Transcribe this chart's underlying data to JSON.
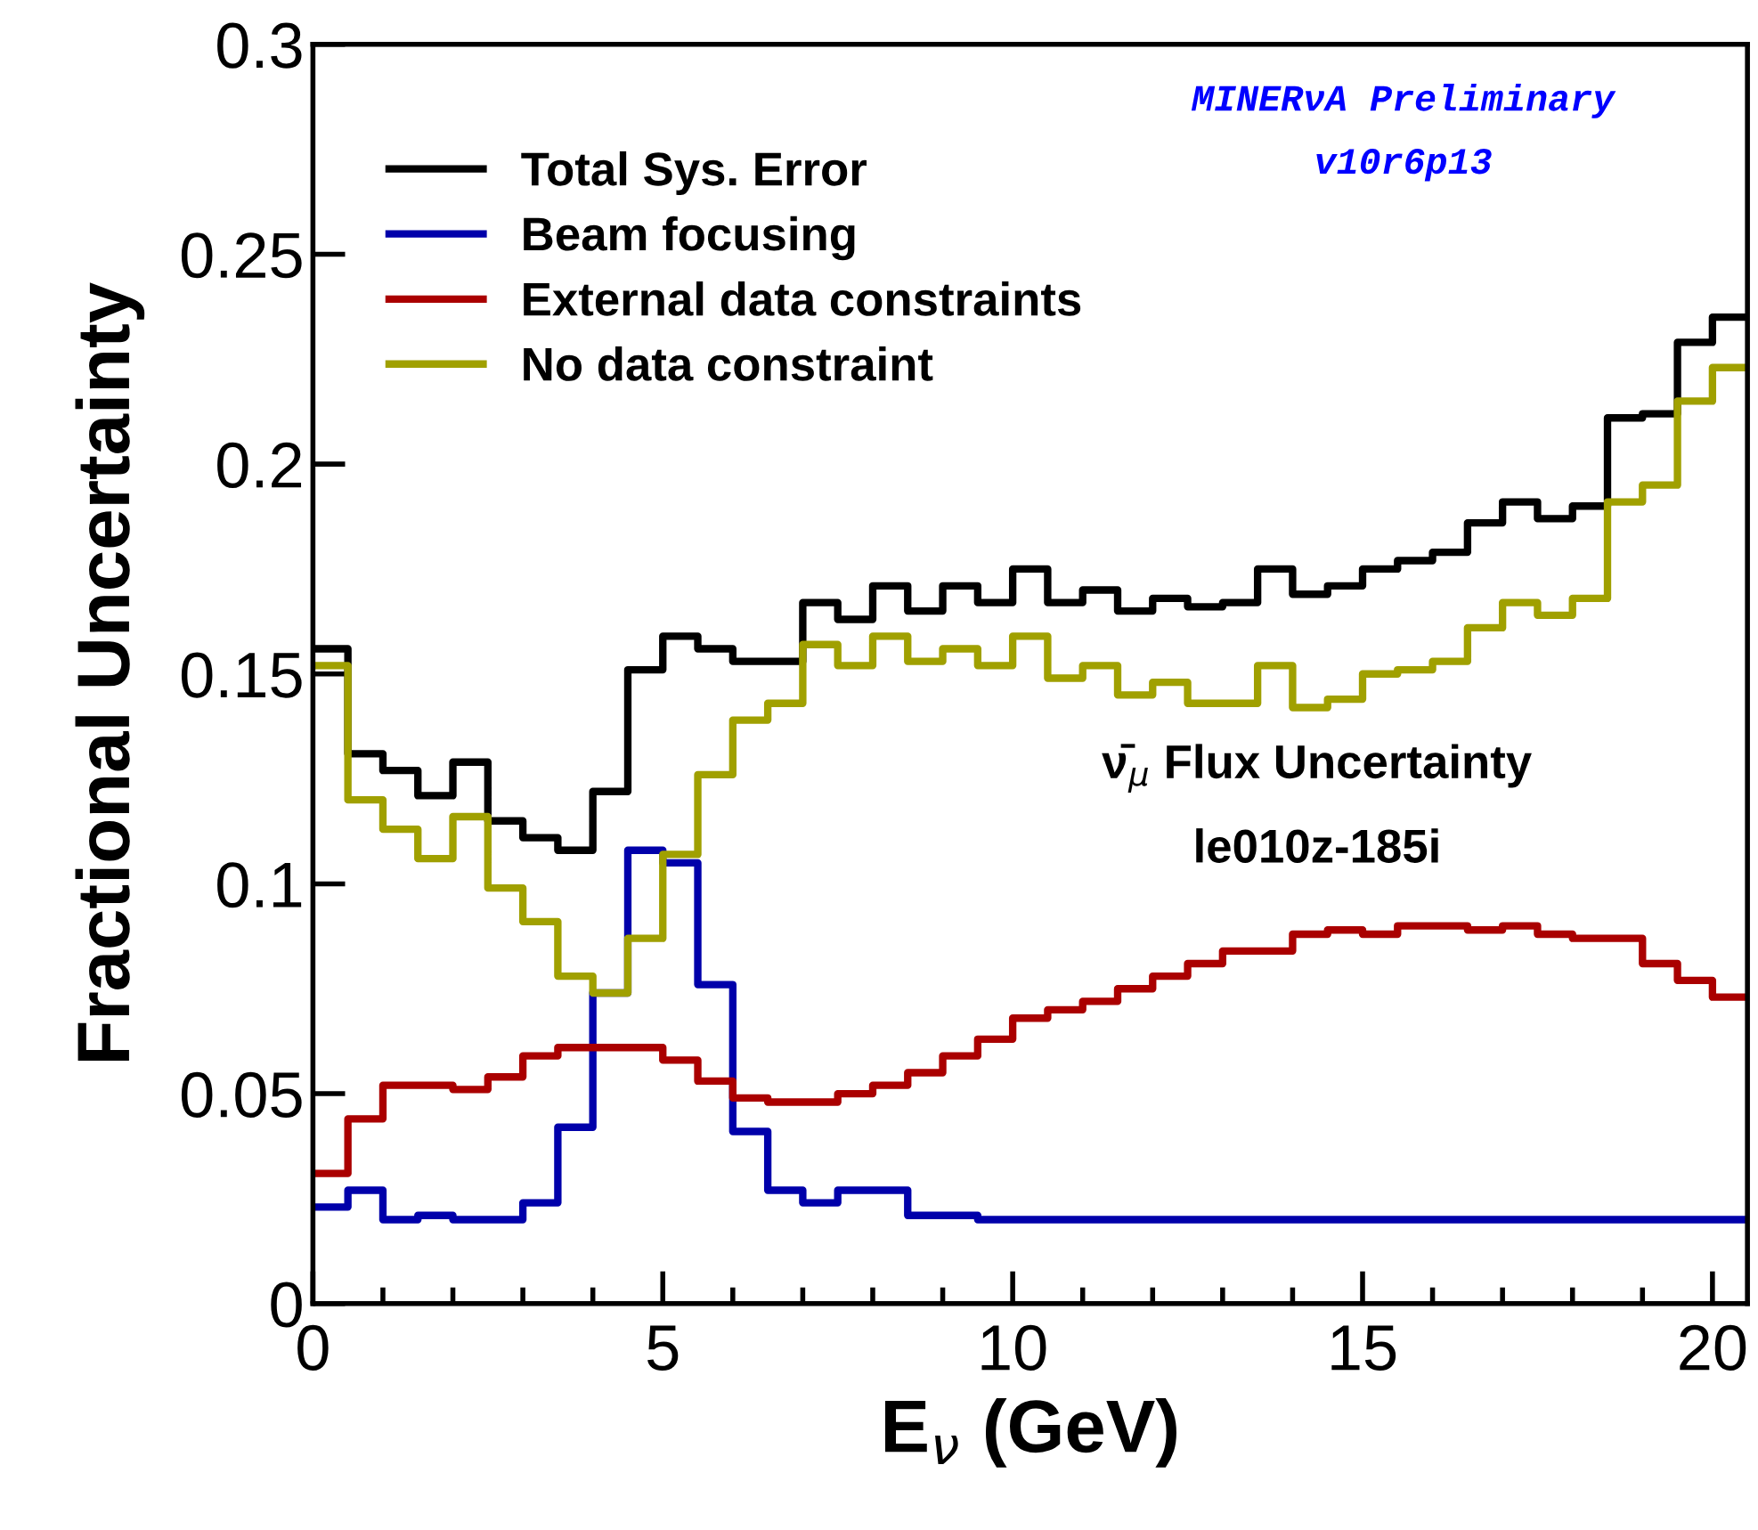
{
  "chart_data": {
    "type": "step",
    "xlabel": "E$_{ν}$ (GeV)",
    "ylabel": "Fractional Uncertainty",
    "x": [
      0,
      0.5,
      1,
      1.5,
      2,
      2.5,
      3,
      3.5,
      4,
      4.5,
      5,
      5.5,
      6,
      6.5,
      7,
      7.5,
      8,
      8.5,
      9,
      9.5,
      10,
      10.5,
      11,
      11.5,
      12,
      12.5,
      13,
      13.5,
      14,
      14.5,
      15,
      15.5,
      16,
      16.5,
      17,
      17.5,
      18,
      18.5,
      19,
      19.5,
      20,
      20.5
    ],
    "series": [
      {
        "name": "Total Sys. Error",
        "color": "#000000",
        "values": [
          0.156,
          0.131,
          0.127,
          0.121,
          0.129,
          0.115,
          0.111,
          0.108,
          0.122,
          0.151,
          0.159,
          0.156,
          0.153,
          0.153,
          0.167,
          0.163,
          0.171,
          0.165,
          0.171,
          0.167,
          0.175,
          0.167,
          0.17,
          0.165,
          0.168,
          0.166,
          0.167,
          0.175,
          0.169,
          0.171,
          0.175,
          0.177,
          0.179,
          0.186,
          0.191,
          0.187,
          0.19,
          0.211,
          0.212,
          0.229,
          0.235,
          0.235
        ]
      },
      {
        "name": "Beam focusing",
        "color": "#0000aa",
        "values": [
          0.023,
          0.027,
          0.02,
          0.021,
          0.02,
          0.02,
          0.024,
          0.042,
          0.074,
          0.108,
          0.105,
          0.076,
          0.041,
          0.027,
          0.024,
          0.027,
          0.027,
          0.021,
          0.021,
          0.02,
          0.02,
          0.02,
          0.02,
          0.02,
          0.02,
          0.02,
          0.02,
          0.02,
          0.02,
          0.02,
          0.02,
          0.02,
          0.02,
          0.02,
          0.02,
          0.02,
          0.02,
          0.02,
          0.02,
          0.02,
          0.02,
          0.02
        ]
      },
      {
        "name": "External data constraints",
        "color": "#aa0000",
        "values": [
          0.031,
          0.044,
          0.052,
          0.052,
          0.051,
          0.054,
          0.059,
          0.061,
          0.061,
          0.061,
          0.058,
          0.053,
          0.049,
          0.048,
          0.048,
          0.05,
          0.052,
          0.055,
          0.059,
          0.063,
          0.068,
          0.07,
          0.072,
          0.075,
          0.078,
          0.081,
          0.084,
          0.084,
          0.088,
          0.089,
          0.088,
          0.09,
          0.09,
          0.089,
          0.09,
          0.088,
          0.087,
          0.087,
          0.081,
          0.077,
          0.073,
          0.073
        ]
      },
      {
        "name": "No data constraint",
        "color": "#a0a000",
        "values": [
          0.152,
          0.12,
          0.113,
          0.106,
          0.116,
          0.099,
          0.091,
          0.078,
          0.074,
          0.087,
          0.107,
          0.126,
          0.139,
          0.143,
          0.157,
          0.152,
          0.159,
          0.153,
          0.156,
          0.152,
          0.159,
          0.149,
          0.152,
          0.145,
          0.148,
          0.143,
          0.143,
          0.152,
          0.142,
          0.144,
          0.15,
          0.151,
          0.153,
          0.161,
          0.167,
          0.164,
          0.168,
          0.191,
          0.195,
          0.215,
          0.223,
          0.223
        ]
      }
    ],
    "xlim": [
      0,
      20.5
    ],
    "xticks": [
      0,
      5,
      10,
      15,
      20
    ],
    "ylim": [
      0,
      0.3
    ],
    "yticks": [
      0,
      0.05,
      0.1,
      0.15,
      0.2,
      0.25,
      0.3
    ],
    "legend": "top left",
    "grid": false,
    "annotations": [
      "MINERνA Preliminary",
      "v10r6p13",
      "ν̄$_{μ}$ Flux Uncertainty",
      "le010z-185i"
    ]
  }
}
